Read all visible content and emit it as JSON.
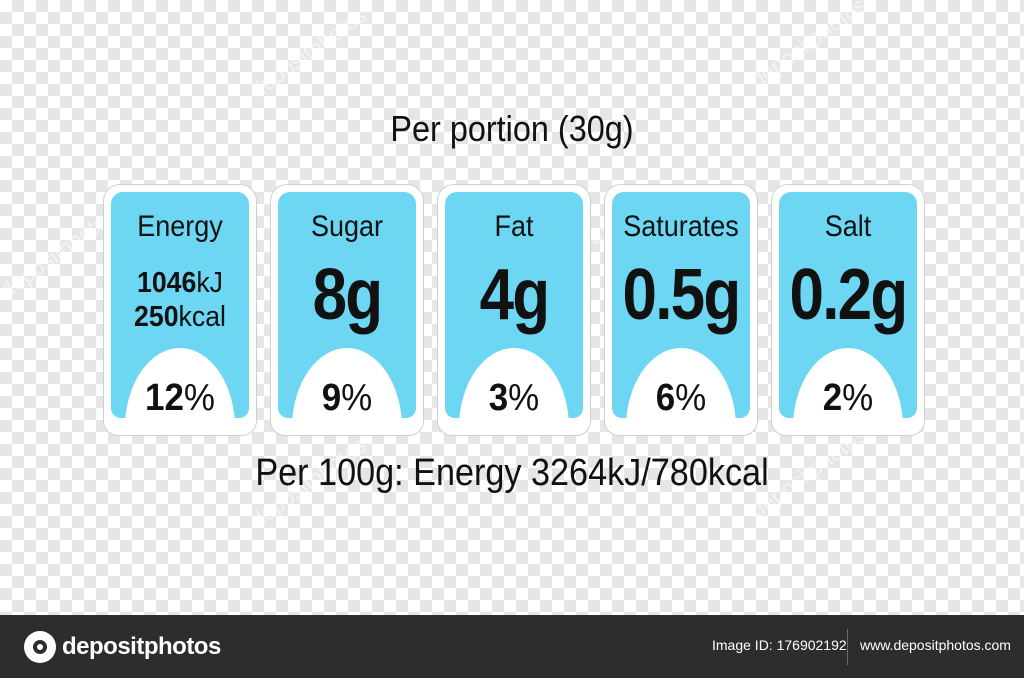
{
  "heading": "Per portion (30g)",
  "footer_line": "Per 100g: Energy 3264kJ/780kcal",
  "colors": {
    "label_blue": "#6dd6f2",
    "label_border": "#ffffff",
    "bar_bg": "#2d2d2f"
  },
  "labels": [
    {
      "name": "Energy",
      "kj": "1046",
      "kj_unit": "kJ",
      "kcal": "250",
      "kcal_unit": "kcal",
      "percent": "12",
      "pct_sign": "%"
    },
    {
      "name": "Sugar",
      "amount": "8g",
      "percent": "9",
      "pct_sign": "%"
    },
    {
      "name": "Fat",
      "amount": "4g",
      "percent": "3",
      "pct_sign": "%"
    },
    {
      "name": "Saturates",
      "amount": "0.5g",
      "percent": "6",
      "pct_sign": "%"
    },
    {
      "name": "Salt",
      "amount": "0.2g",
      "percent": "2",
      "pct_sign": "%"
    }
  ],
  "watermark": "depositphotos",
  "bottom_bar": {
    "logo_icon": "depositphotos-logo-icon",
    "logo_text": "depositphotos",
    "image_id": "Image ID: 176902192",
    "site_url": "www.depositphotos.com"
  }
}
